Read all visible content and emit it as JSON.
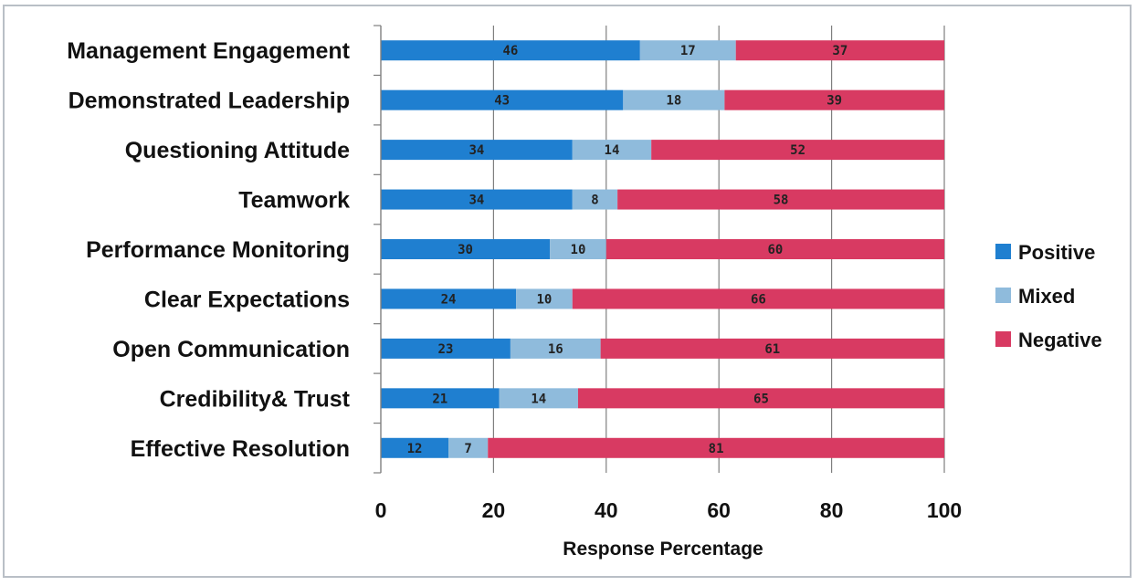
{
  "chart_data": {
    "type": "bar",
    "orientation": "horizontal",
    "stacked": true,
    "categories": [
      "Management Engagement",
      "Demonstrated Leadership",
      "Questioning  Attitude",
      "Teamwork",
      "Performance Monitoring",
      "Clear Expectations",
      "Open Communication",
      "Credibility& Trust",
      "Effective Resolution"
    ],
    "series": [
      {
        "name": "Positive",
        "color": "#1f7fd0",
        "values": [
          46,
          43,
          34,
          34,
          30,
          24,
          23,
          21,
          12
        ]
      },
      {
        "name": "Mixed",
        "color": "#8fbbdc",
        "values": [
          17,
          18,
          14,
          8,
          10,
          10,
          16,
          14,
          7
        ]
      },
      {
        "name": "Negative",
        "color": "#d83a62",
        "values": [
          37,
          39,
          52,
          58,
          60,
          66,
          61,
          65,
          81
        ]
      }
    ],
    "xlabel": "Response Percentage",
    "ylabel": "",
    "xlim": [
      0,
      100
    ],
    "xticks": [
      0,
      20,
      40,
      60,
      80,
      100
    ],
    "grid": "vertical",
    "legend_position": "right",
    "data_labels": true
  }
}
